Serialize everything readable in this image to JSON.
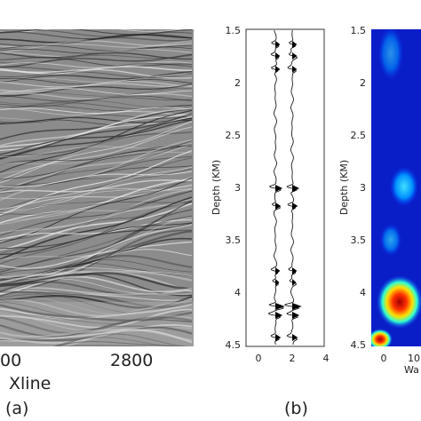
{
  "panel_a": {
    "xticks": [
      "00",
      2800
    ],
    "xlabel": "Xline",
    "caption": "(a)"
  },
  "panel_b": {
    "yticks": [
      1.5,
      2,
      2.5,
      3,
      3.5,
      4,
      4.5
    ],
    "ylabel": "Depth (KM)",
    "xticks": [
      0,
      2,
      4
    ],
    "caption": "(b)"
  },
  "panel_c": {
    "yticks": [
      1.5,
      2,
      2.5,
      3,
      3.5,
      4,
      4.5
    ],
    "ylabel": "Depth (KM)",
    "xticks": [
      0,
      10
    ],
    "xlabel": "Wa"
  }
}
